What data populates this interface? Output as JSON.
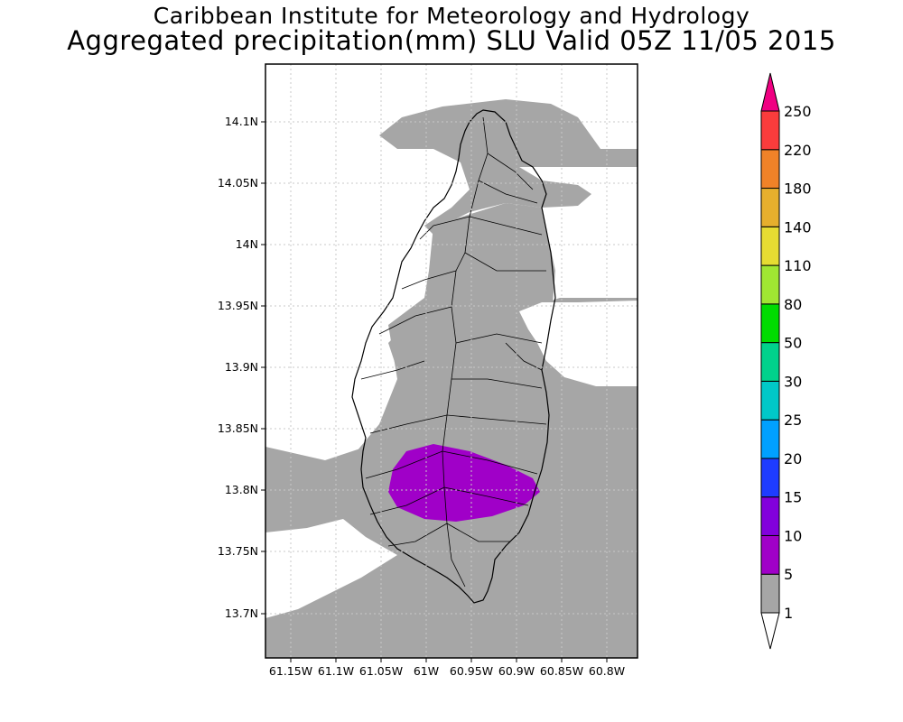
{
  "title": {
    "line1": "Caribbean Institute for Meteorology and Hydrology",
    "line2": "Aggregated precipitation(mm) SLU Valid 05Z 11/05 2015"
  },
  "map": {
    "x_ticks": [
      "61.15W",
      "61.1W",
      "61.05W",
      "61W",
      "60.95W",
      "60.9W",
      "60.85W",
      "60.8W"
    ],
    "y_ticks": [
      "14.1N",
      "14.05N",
      "14N",
      "13.95N",
      "13.9N",
      "13.85N",
      "13.8N",
      "13.75N",
      "13.7N"
    ],
    "lon_range": [
      -61.165,
      -60.795
    ],
    "lat_range": [
      13.665,
      14.145
    ],
    "gridlines": true,
    "gridline_style": "dotted"
  },
  "colorbar": {
    "levels": [
      "1",
      "5",
      "10",
      "15",
      "20",
      "25",
      "30",
      "50",
      "80",
      "110",
      "140",
      "180",
      "220",
      "250"
    ],
    "colors": [
      "#ffffff",
      "#a6a6a6",
      "#a000c8",
      "#8200dc",
      "#1e3cff",
      "#00a0ff",
      "#00c8c8",
      "#00d28c",
      "#00dc00",
      "#a0e632",
      "#e6dc32",
      "#e6af2d",
      "#f08228",
      "#fa3c3c",
      "#f00082"
    ]
  },
  "colors": {
    "light_rain": "#a6a6a6",
    "moderate_rain": "#a000c8",
    "no_rain": "#ffffff",
    "coastline": "#000000"
  }
}
